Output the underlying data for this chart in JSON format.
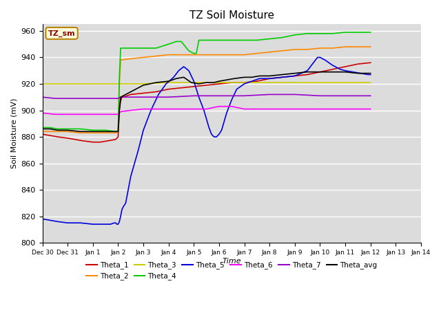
{
  "title": "TZ Soil Moisture",
  "xlabel": "Time",
  "ylabel": "Soil Moisture (mV)",
  "ylim": [
    800,
    965
  ],
  "yticks": [
    800,
    820,
    840,
    860,
    880,
    900,
    920,
    940,
    960
  ],
  "xtick_labels": [
    "Dec 30",
    "Dec 31",
    "Jan 1",
    "Jan 2",
    "Jan 3",
    "Jan 4",
    "Jan 5",
    "Jan 6",
    "Jan 7",
    "Jan 8",
    "Jan 9",
    "Jan 10",
    "Jan 11",
    "Jan 12",
    "Jan 13",
    "Jan 14"
  ],
  "bg_color": "#dcdcdc",
  "legend_label": "TZ_sm",
  "series": [
    {
      "name": "Theta_1",
      "color": "#cc0000",
      "x": [
        0,
        0.3,
        0.6,
        1.0,
        1.3,
        1.6,
        2.0,
        2.3,
        2.6,
        2.9,
        3.0,
        3.05,
        3.1,
        3.15,
        3.2,
        3.5,
        4.0,
        4.5,
        5.0,
        5.5,
        6.0,
        6.5,
        7.0,
        7.5,
        8.0,
        8.5,
        9.0,
        9.5,
        10.0,
        10.5,
        11.0,
        11.5,
        12.0,
        12.5,
        13.0
      ],
      "y": [
        882,
        881,
        880,
        879,
        878,
        877,
        876,
        876,
        877,
        878,
        880,
        900,
        907,
        910,
        910,
        912,
        913,
        914,
        916,
        917,
        918,
        919,
        920,
        921,
        921,
        922,
        924,
        925,
        926,
        927,
        929,
        931,
        933,
        935,
        936
      ]
    },
    {
      "name": "Theta_2",
      "color": "#ff8800",
      "x": [
        0,
        0.3,
        0.6,
        1.0,
        1.5,
        2.0,
        2.5,
        2.9,
        3.0,
        3.05,
        3.1,
        3.5,
        4.0,
        4.5,
        5.0,
        5.5,
        6.0,
        6.5,
        7.0,
        7.5,
        8.0,
        8.5,
        9.0,
        9.5,
        10.0,
        10.5,
        11.0,
        11.5,
        12.0,
        12.5,
        13.0
      ],
      "y": [
        884,
        884,
        884,
        884,
        883,
        883,
        883,
        883,
        884,
        920,
        938,
        939,
        940,
        941,
        942,
        942,
        942,
        942,
        942,
        942,
        942,
        943,
        944,
        945,
        946,
        946,
        947,
        947,
        948,
        948,
        948
      ]
    },
    {
      "name": "Theta_3",
      "color": "#cccc00",
      "x": [
        0,
        1.0,
        2.0,
        2.9,
        3.0,
        3.5,
        4.0,
        5.0,
        6.0,
        7.0,
        8.0,
        9.0,
        10.0,
        11.0,
        12.0,
        13.0
      ],
      "y": [
        920,
        920,
        920,
        920,
        920,
        920,
        920,
        921,
        921,
        921,
        921,
        921,
        921,
        921,
        921,
        921
      ]
    },
    {
      "name": "Theta_4",
      "color": "#00cc00",
      "x": [
        0,
        0.3,
        0.6,
        1.0,
        1.5,
        2.0,
        2.5,
        2.9,
        3.0,
        3.05,
        3.1,
        3.5,
        4.0,
        4.5,
        5.0,
        5.3,
        5.5,
        5.8,
        6.0,
        6.1,
        6.15,
        6.2,
        6.5,
        7.0,
        7.5,
        8.0,
        8.5,
        9.0,
        9.5,
        10.0,
        10.5,
        11.0,
        11.5,
        12.0,
        12.5,
        13.0
      ],
      "y": [
        887,
        887,
        886,
        886,
        886,
        885,
        885,
        884,
        884,
        925,
        947,
        947,
        947,
        947,
        950,
        952,
        952,
        945,
        943,
        943,
        948,
        953,
        953,
        953,
        953,
        953,
        953,
        954,
        955,
        957,
        958,
        958,
        958,
        959,
        959,
        959
      ]
    },
    {
      "name": "Theta_5",
      "color": "#0000dd",
      "x": [
        0,
        0.3,
        0.6,
        1.0,
        1.5,
        2.0,
        2.3,
        2.5,
        2.7,
        2.85,
        2.9,
        2.95,
        3.0,
        3.05,
        3.1,
        3.15,
        3.2,
        3.3,
        3.5,
        3.8,
        4.0,
        4.3,
        4.6,
        4.9,
        5.2,
        5.4,
        5.6,
        5.8,
        6.0,
        6.2,
        6.4,
        6.6,
        6.7,
        6.8,
        6.9,
        7.0,
        7.1,
        7.3,
        7.5,
        7.7,
        8.0,
        8.3,
        8.6,
        9.0,
        9.5,
        10.0,
        10.5,
        10.7,
        10.9,
        11.0,
        11.2,
        11.5,
        11.8,
        12.0,
        12.3,
        12.6,
        12.9,
        13.0
      ],
      "y": [
        818,
        817,
        816,
        815,
        815,
        814,
        814,
        814,
        814,
        815,
        815,
        814,
        814,
        816,
        820,
        825,
        827,
        830,
        850,
        870,
        885,
        900,
        912,
        920,
        925,
        930,
        933,
        930,
        922,
        910,
        900,
        887,
        882,
        880,
        880,
        882,
        885,
        898,
        908,
        916,
        920,
        922,
        924,
        924,
        925,
        926,
        930,
        935,
        940,
        940,
        938,
        934,
        931,
        930,
        929,
        928,
        927,
        927
      ]
    },
    {
      "name": "Theta_6",
      "color": "#ff00ff",
      "x": [
        0,
        0.5,
        1.0,
        1.5,
        2.0,
        2.5,
        2.9,
        3.0,
        3.1,
        3.5,
        4.0,
        5.0,
        5.5,
        6.0,
        6.5,
        7.0,
        7.5,
        8.0,
        9.0,
        10.0,
        11.0,
        12.0,
        13.0
      ],
      "y": [
        898,
        897,
        897,
        897,
        897,
        897,
        897,
        897,
        899,
        900,
        901,
        901,
        901,
        901,
        901,
        903,
        903,
        901,
        901,
        901,
        901,
        901,
        901
      ]
    },
    {
      "name": "Theta_7",
      "color": "#9900cc",
      "x": [
        0,
        0.5,
        1.0,
        1.5,
        2.0,
        2.5,
        2.9,
        3.0,
        3.1,
        3.5,
        4.0,
        5.0,
        6.0,
        7.0,
        8.0,
        9.0,
        10.0,
        11.0,
        12.0,
        13.0
      ],
      "y": [
        910,
        909,
        909,
        909,
        909,
        909,
        909,
        909,
        910,
        910,
        910,
        910,
        911,
        911,
        911,
        912,
        912,
        911,
        911,
        911
      ]
    },
    {
      "name": "Theta_avg",
      "color": "#000000",
      "x": [
        0,
        0.3,
        0.6,
        1.0,
        1.5,
        2.0,
        2.5,
        2.9,
        3.0,
        3.05,
        3.1,
        3.5,
        4.0,
        4.5,
        5.0,
        5.3,
        5.6,
        5.9,
        6.2,
        6.5,
        6.8,
        7.0,
        7.3,
        7.6,
        8.0,
        8.3,
        8.6,
        9.0,
        9.5,
        10.0,
        10.5,
        11.0,
        11.5,
        12.0,
        12.5,
        13.0
      ],
      "y": [
        886,
        886,
        885,
        885,
        884,
        884,
        884,
        884,
        884,
        900,
        910,
        914,
        919,
        921,
        922,
        924,
        925,
        921,
        920,
        921,
        921,
        922,
        923,
        924,
        925,
        925,
        926,
        926,
        927,
        928,
        929,
        929,
        929,
        929,
        928,
        928
      ]
    }
  ],
  "legend_entries": [
    [
      "Theta_1",
      "#cc0000"
    ],
    [
      "Theta_2",
      "#ff8800"
    ],
    [
      "Theta_3",
      "#cccc00"
    ],
    [
      "Theta_4",
      "#00cc00"
    ],
    [
      "Theta_5",
      "#0000dd"
    ],
    [
      "Theta_6",
      "#ff00ff"
    ],
    [
      "Theta_7",
      "#9900cc"
    ],
    [
      "Theta_avg",
      "#000000"
    ]
  ]
}
